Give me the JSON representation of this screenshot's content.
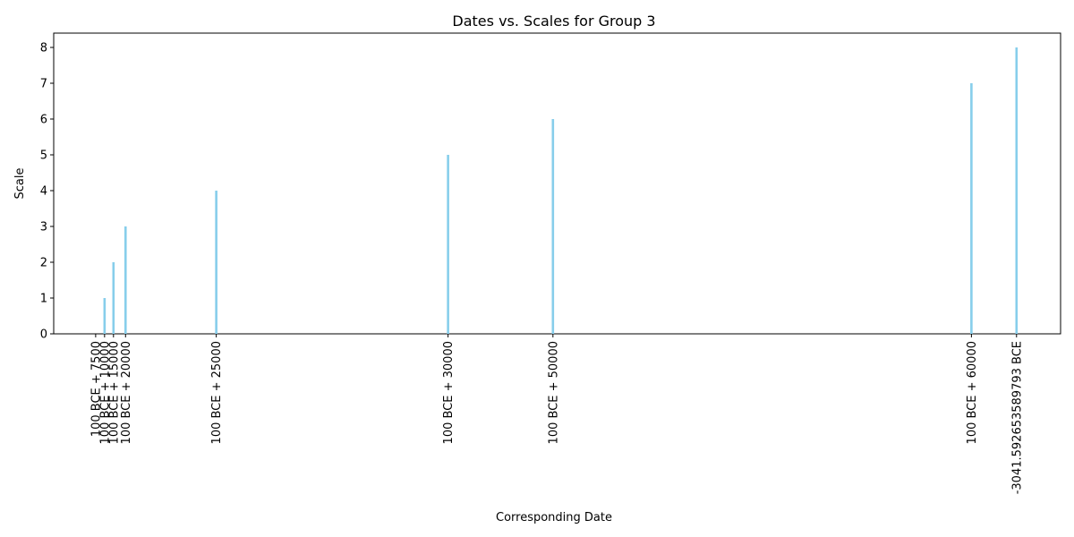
{
  "chart_data": {
    "type": "bar",
    "title": "Dates vs. Scales for Group 3",
    "xlabel": "Corresponding Date",
    "ylabel": "Scale",
    "ylim": [
      0,
      8.4
    ],
    "yticks": [
      0,
      1,
      2,
      3,
      4,
      5,
      6,
      7,
      8
    ],
    "x_ticks": [
      {
        "label": "100 BCE + 7500",
        "x": 0
      },
      {
        "label": "100 BCE + 10000",
        "x": 850
      },
      {
        "label": "100 BCE + 15000",
        "x": 1700
      },
      {
        "label": "100 BCE + 20000",
        "x": 2850
      },
      {
        "label": "100 BCE + 25000",
        "x": 11500
      },
      {
        "label": "100 BCE + 30000",
        "x": 33600
      },
      {
        "label": "100 BCE + 50000",
        "x": 43600
      },
      {
        "label": "100 BCE + 60000",
        "x": 83500
      },
      {
        "label": "-3041.592653589793 BCE",
        "x": 87800
      }
    ],
    "bars": [
      {
        "x": 850,
        "value": 1
      },
      {
        "x": 1700,
        "value": 2
      },
      {
        "x": 2850,
        "value": 3
      },
      {
        "x": 11500,
        "value": 4
      },
      {
        "x": 33600,
        "value": 5
      },
      {
        "x": 43600,
        "value": 6
      },
      {
        "x": 83500,
        "value": 7
      },
      {
        "x": 87800,
        "value": 8
      }
    ],
    "xlim": [
      -4000,
      92000
    ],
    "bar_color": "#87ceeb",
    "grid": false,
    "legend": "none"
  }
}
